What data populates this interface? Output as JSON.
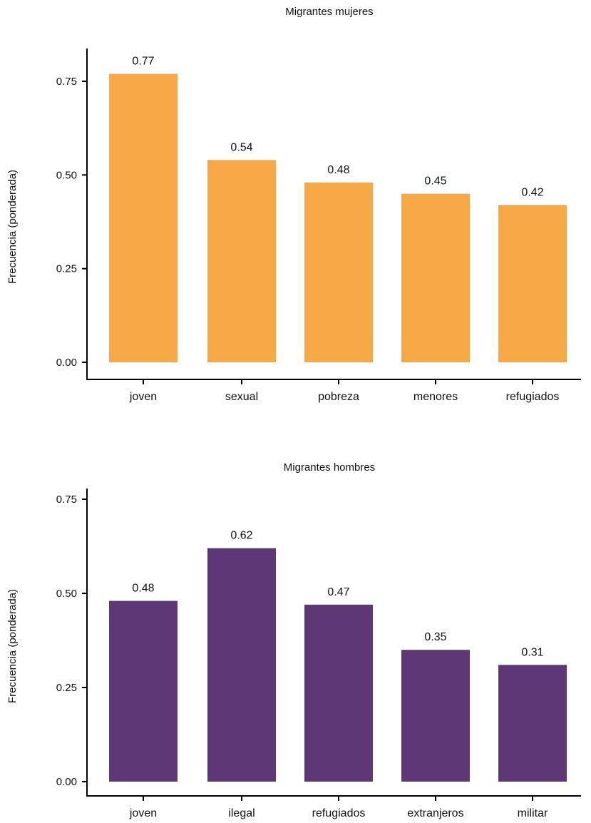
{
  "chart_data": [
    {
      "type": "bar",
      "title": "Migrantes mujeres",
      "ylabel": "Frecuencia (ponderada)",
      "xlabel": "",
      "categories": [
        "joven",
        "sexual",
        "pobreza",
        "menores",
        "refugiados"
      ],
      "values": [
        0.77,
        0.54,
        0.48,
        0.45,
        0.42
      ],
      "value_labels": [
        "0.77",
        "0.54",
        "0.48",
        "0.45",
        "0.42"
      ],
      "yticks": [
        "0.00",
        "0.25",
        "0.50",
        "0.75"
      ],
      "ylim": [
        0,
        0.8
      ],
      "color": "#F8A947",
      "grid": false
    },
    {
      "type": "bar",
      "title": "Migrantes hombres",
      "ylabel": "Frecuencia (ponderada)",
      "xlabel": "",
      "categories": [
        "joven",
        "ilegal",
        "refugiados",
        "extranjeros",
        "militar"
      ],
      "values": [
        0.48,
        0.62,
        0.47,
        0.35,
        0.31
      ],
      "value_labels": [
        "0.48",
        "0.62",
        "0.47",
        "0.35",
        "0.31"
      ],
      "yticks": [
        "0.00",
        "0.25",
        "0.50",
        "0.75"
      ],
      "ylim": [
        0,
        0.8
      ],
      "color": "#5E3777",
      "grid": false
    }
  ]
}
